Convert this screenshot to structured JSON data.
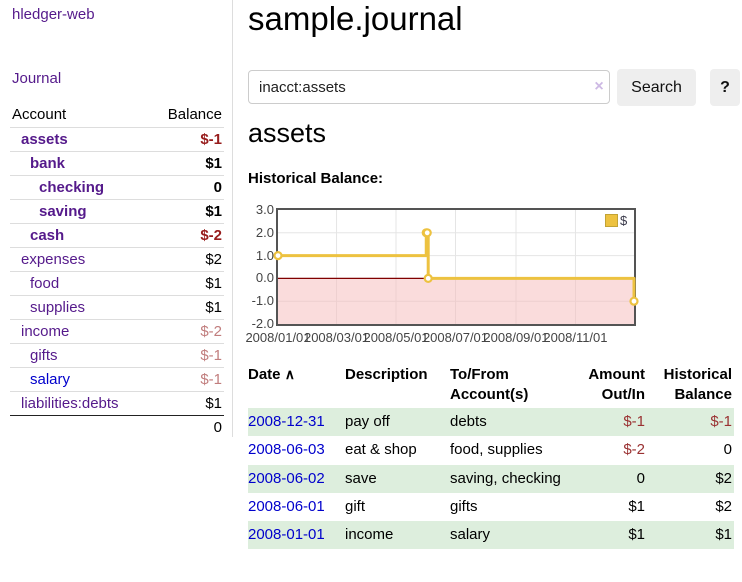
{
  "app": {
    "title": "hledger-web",
    "nav_journal": "Journal"
  },
  "sidebar": {
    "header": {
      "account": "Account",
      "balance": "Balance"
    },
    "accounts": [
      {
        "name": "assets",
        "depth": 1,
        "bold": true,
        "balance": "$-1",
        "neg": "strong",
        "link": "purple"
      },
      {
        "name": "bank",
        "depth": 2,
        "bold": true,
        "balance": "$1",
        "neg": "none",
        "link": "purple"
      },
      {
        "name": "checking",
        "depth": 3,
        "bold": true,
        "balance": "0",
        "neg": "none",
        "link": "purple"
      },
      {
        "name": "saving",
        "depth": 3,
        "bold": true,
        "balance": "$1",
        "neg": "none",
        "link": "purple"
      },
      {
        "name": "cash",
        "depth": 2,
        "bold": true,
        "balance": "$-2",
        "neg": "strong",
        "link": "purple"
      },
      {
        "name": "expenses",
        "depth": 1,
        "bold": false,
        "balance": "$2",
        "neg": "none",
        "link": "purple"
      },
      {
        "name": "food",
        "depth": 2,
        "bold": false,
        "balance": "$1",
        "neg": "none",
        "link": "purple"
      },
      {
        "name": "supplies",
        "depth": 2,
        "bold": false,
        "balance": "$1",
        "neg": "none",
        "link": "purple"
      },
      {
        "name": "income",
        "depth": 1,
        "bold": false,
        "balance": "$-2",
        "neg": "faint",
        "link": "purple"
      },
      {
        "name": "gifts",
        "depth": 2,
        "bold": false,
        "balance": "$-1",
        "neg": "faint",
        "link": "purple"
      },
      {
        "name": "salary",
        "depth": 2,
        "bold": false,
        "balance": "$-1",
        "neg": "faint",
        "link": "blue"
      },
      {
        "name": "liabilities:debts",
        "depth": 1,
        "bold": false,
        "balance": "$1",
        "neg": "none",
        "link": "purple"
      }
    ],
    "total": "0"
  },
  "header": {
    "title": "sample.journal"
  },
  "search": {
    "value": "inacct:assets",
    "clear_label": "×",
    "button_label": "Search",
    "help_label": "?"
  },
  "account_page": {
    "heading": "assets",
    "chart_label": "Historical Balance:"
  },
  "chart_data": {
    "type": "line",
    "step": true,
    "title": "Historical Balance",
    "legend": "$",
    "legend_position": "top-right",
    "x_range": [
      "2008-01-01",
      "2008-12-31"
    ],
    "ylim": [
      -2,
      3
    ],
    "y_ticks": [
      3.0,
      2.0,
      1.0,
      0.0,
      -1.0,
      -2.0
    ],
    "x_ticks": [
      "2008/01/01",
      "2008/03/01",
      "2008/05/01",
      "2008/07/01",
      "2008/09/01",
      "2008/11/01"
    ],
    "grid": true,
    "series": [
      {
        "name": "$",
        "color": "#edc240",
        "points": [
          [
            "2008-01-01",
            1
          ],
          [
            "2008-06-01",
            2
          ],
          [
            "2008-06-02",
            2
          ],
          [
            "2008-06-03",
            0
          ],
          [
            "2008-12-31",
            -1
          ]
        ]
      }
    ],
    "negative_region_fill": "#f6b9b9",
    "zero_line_color": "#800000"
  },
  "register": {
    "col_date": "Date",
    "sort_icon": "∧",
    "col_description": "Description",
    "col_accounts": "To/From Account(s)",
    "col_amount": "Amount Out/In",
    "col_balance": "Historical Balance",
    "rows": [
      {
        "date": "2008-12-31",
        "description": "pay off",
        "accounts": "debts",
        "amount": "$-1",
        "amount_neg": true,
        "balance": "$-1",
        "balance_neg": true
      },
      {
        "date": "2008-06-03",
        "description": "eat & shop",
        "accounts": "food, supplies",
        "amount": "$-2",
        "amount_neg": true,
        "balance": "0",
        "balance_neg": false
      },
      {
        "date": "2008-06-02",
        "description": "save",
        "accounts": "saving, checking",
        "amount": "0",
        "amount_neg": false,
        "balance": "$2",
        "balance_neg": false
      },
      {
        "date": "2008-06-01",
        "description": "gift",
        "accounts": "gifts",
        "amount": "$1",
        "amount_neg": false,
        "balance": "$2",
        "balance_neg": false
      },
      {
        "date": "2008-01-01",
        "description": "income",
        "accounts": "salary",
        "amount": "$1",
        "amount_neg": false,
        "balance": "$1",
        "balance_neg": false
      }
    ]
  },
  "colors": {
    "link_purple": "#551a8b",
    "link_blue": "#0000cc",
    "negative_strong": "#971c1c",
    "negative_faint": "#c17d7d",
    "negative_medium": "#9a3132",
    "row_green": "#ddeedd",
    "series_gold": "#edc240"
  }
}
